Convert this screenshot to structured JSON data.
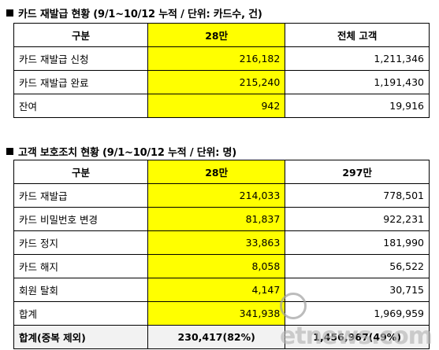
{
  "section1": {
    "title": "카드 재발급 현황 (9/1~10/12 누적 / 단위: 카드수, 건)",
    "headers": [
      "구분",
      "28만",
      "전체 고객"
    ],
    "rows": [
      {
        "label": "카드 재발급 신청",
        "a": "216,182",
        "b": "1,211,346"
      },
      {
        "label": "카드 재발급 완료",
        "a": "215,240",
        "b": "1,191,430"
      },
      {
        "label": "잔여",
        "a": "942",
        "b": "19,916"
      }
    ]
  },
  "section2": {
    "title": "고객 보호조치 현황 (9/1~10/12 누적 / 단위: 명)",
    "headers": [
      "구분",
      "28만",
      "297만"
    ],
    "rows": [
      {
        "label": "카드 재발급",
        "a": "214,033",
        "b": "778,501"
      },
      {
        "label": "카드 비밀번호 변경",
        "a": "81,837",
        "b": "922,231"
      },
      {
        "label": "카드 정지",
        "a": "33,863",
        "b": "181,990"
      },
      {
        "label": "카드 해지",
        "a": "8,058",
        "b": "56,522"
      },
      {
        "label": "회원 탈회",
        "a": "4,147",
        "b": "30,715"
      },
      {
        "label": "합계",
        "a": "341,938",
        "b": "1,969,959"
      },
      {
        "label": "합계(중복 제외)",
        "a": "230,417(82%)",
        "b": "1,456,967(49%)"
      }
    ]
  },
  "watermark": "etnews.com",
  "colors": {
    "highlight": "#ffff00",
    "total_bg": "#f2f2f2"
  }
}
